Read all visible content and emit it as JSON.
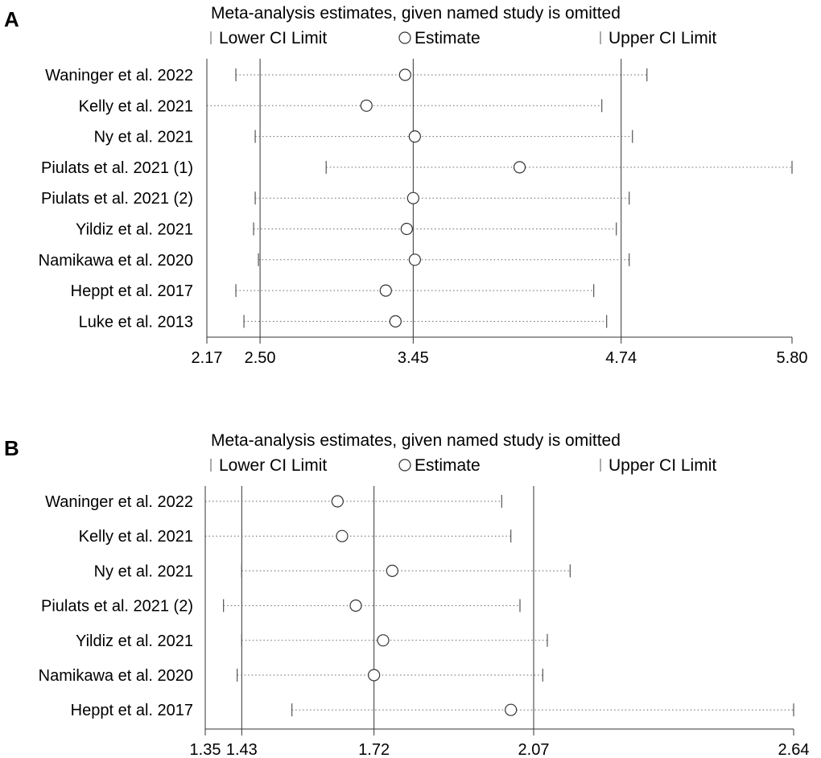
{
  "chart_data": [
    {
      "type": "scatter",
      "panel": "A",
      "title": "Meta-analysis estimates, given named study is omitted",
      "legend": [
        "Lower CI Limit",
        "Estimate",
        "Upper CI Limit"
      ],
      "xlim": [
        2.17,
        5.8
      ],
      "xticks": [
        "2.17",
        "2.50",
        "3.45",
        "4.74",
        "5.80"
      ],
      "reference_lines": [
        2.5,
        3.45,
        4.74
      ],
      "studies": [
        "Waninger et al. 2022",
        "Kelly et al. 2021",
        "Ny et al. 2021",
        "Piulats et al. 2021 (1)",
        "Piulats et al. 2021 (2)",
        "Yildiz et al. 2021",
        "Namikawa et al. 2020",
        "Heppt et al. 2017",
        "Luke et al. 2013"
      ],
      "lower": [
        2.35,
        2.17,
        2.47,
        2.91,
        2.47,
        2.46,
        2.49,
        2.35,
        2.4
      ],
      "estimate": [
        3.4,
        3.16,
        3.46,
        4.11,
        3.45,
        3.41,
        3.46,
        3.28,
        3.34
      ],
      "upper": [
        4.9,
        4.62,
        4.81,
        5.8,
        4.79,
        4.71,
        4.79,
        4.57,
        4.65
      ]
    },
    {
      "type": "scatter",
      "panel": "B",
      "title": "Meta-analysis estimates, given named study is omitted",
      "legend": [
        "Lower CI Limit",
        "Estimate",
        "Upper CI Limit"
      ],
      "xlim": [
        1.35,
        2.64
      ],
      "xticks": [
        "1.35",
        "1.43",
        "1.72",
        "2.07",
        "2.64"
      ],
      "reference_lines": [
        1.43,
        1.72,
        2.07
      ],
      "studies": [
        "Waninger et al. 2022",
        "Kelly et al. 2021",
        "Ny et al. 2021",
        "Piulats et al. 2021 (2)",
        "Yildiz et al. 2021",
        "Namikawa et al. 2020",
        "Heppt et al. 2017"
      ],
      "lower": [
        1.35,
        1.35,
        1.43,
        1.39,
        1.43,
        1.42,
        1.54
      ],
      "estimate": [
        1.64,
        1.65,
        1.76,
        1.68,
        1.74,
        1.72,
        2.02
      ],
      "upper": [
        2.0,
        2.02,
        2.15,
        2.04,
        2.1,
        2.09,
        2.64
      ]
    }
  ]
}
